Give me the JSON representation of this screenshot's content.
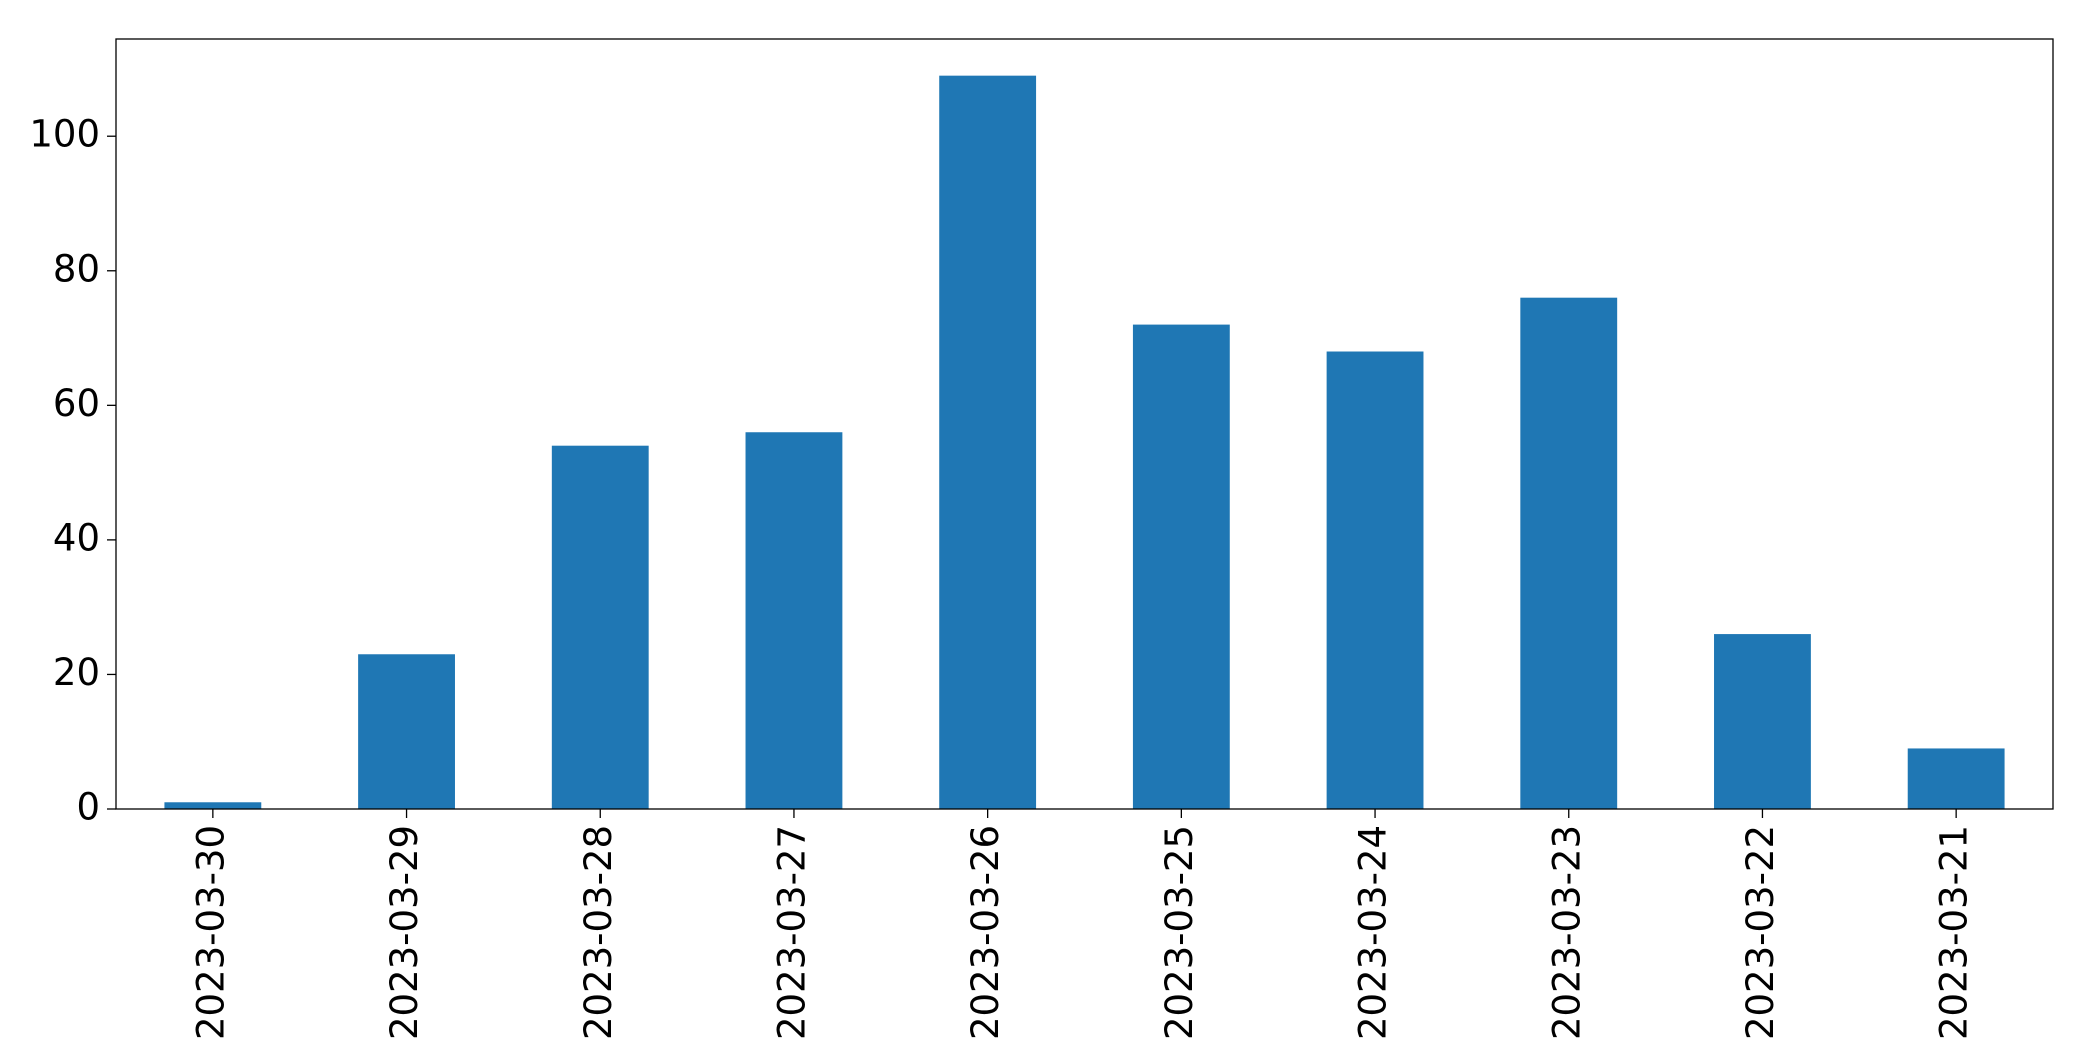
{
  "chart_data": {
    "type": "bar",
    "categories": [
      "2023-03-30",
      "2023-03-29",
      "2023-03-28",
      "2023-03-27",
      "2023-03-26",
      "2023-03-25",
      "2023-03-24",
      "2023-03-23",
      "2023-03-22",
      "2023-03-21"
    ],
    "values": [
      1,
      23,
      54,
      56,
      109,
      72,
      68,
      76,
      26,
      9
    ],
    "color": "#1f77b4",
    "ylim": [
      0,
      114.45
    ],
    "yticks": [
      0,
      20,
      40,
      60,
      80,
      100
    ],
    "grid": false
  }
}
